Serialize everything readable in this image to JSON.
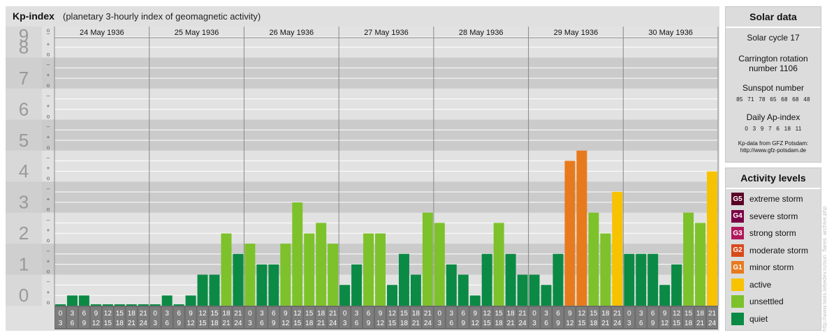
{
  "header": {
    "title": "Kp-index",
    "subtitle": "(planetary 3-hourly index of geomagnetic activity)"
  },
  "chart_data": {
    "type": "bar",
    "title": "Kp-index",
    "subtitle": "(planetary 3-hourly index of geomagnetic activity)",
    "ylim": [
      0,
      9
    ],
    "y_ticks": [
      "0",
      "1",
      "2",
      "3",
      "4",
      "5",
      "6",
      "7",
      "8",
      "9"
    ],
    "minor_tick_labels": [
      "+",
      "o",
      "–"
    ],
    "days": [
      "24 May 1936",
      "25 May 1936",
      "26 May 1936",
      "27 May 1936",
      "28 May 1936",
      "29 May 1936",
      "30 May 1936"
    ],
    "intervals": [
      {
        "from": "0",
        "to": "3"
      },
      {
        "from": "3",
        "to": "6"
      },
      {
        "from": "6",
        "to": "9"
      },
      {
        "from": "9",
        "to": "12"
      },
      {
        "from": "12",
        "to": "15"
      },
      {
        "from": "15",
        "to": "18"
      },
      {
        "from": "18",
        "to": "21"
      },
      {
        "from": "21",
        "to": "24"
      }
    ],
    "values": [
      0.0,
      0.33,
      0.33,
      0.0,
      0.0,
      0.0,
      0.0,
      0.0,
      0.0,
      0.33,
      0.0,
      0.33,
      1.0,
      1.0,
      2.33,
      1.67,
      2.0,
      1.33,
      1.33,
      2.0,
      3.33,
      2.33,
      2.67,
      2.0,
      0.67,
      1.33,
      2.33,
      2.33,
      0.67,
      1.67,
      1.0,
      3.0,
      2.67,
      1.33,
      1.0,
      0.33,
      1.67,
      2.67,
      1.67,
      1.0,
      1.0,
      0.67,
      1.67,
      4.67,
      5.0,
      3.0,
      2.33,
      3.67,
      1.67,
      1.67,
      1.67,
      0.67,
      1.33,
      3.0,
      2.67,
      4.33
    ],
    "grid": true
  },
  "solar": {
    "title": "Solar data",
    "cycle": "Solar cycle 17",
    "carrington_line1": "Carrington rotation",
    "carrington_line2": "number 1106",
    "sunspot_title": "Sunspot number",
    "sunspot_numbers": "85 71 78 65 68 68 48",
    "ap_title": "Daily Ap-index",
    "ap_numbers": "0 3 9 7 6 18 11",
    "source_line1": "Kp-data from GFZ Potsdam:",
    "source_line2": "http://www.gfz-potsdam.de"
  },
  "activity": {
    "title": "Activity levels",
    "levels": [
      {
        "badge": "G5",
        "label": "extreme storm",
        "color": "#5a0026"
      },
      {
        "badge": "G4",
        "label": "severe storm",
        "color": "#7a0044"
      },
      {
        "badge": "G3",
        "label": "strong storm",
        "color": "#b0185a"
      },
      {
        "badge": "G2",
        "label": "moderate storm",
        "color": "#d84a1a"
      },
      {
        "badge": "G1",
        "label": "minor storm",
        "color": "#e87a1e"
      },
      {
        "badge": "",
        "label": "active",
        "color": "#f7c200"
      },
      {
        "badge": "",
        "label": "unsettled",
        "color": "#7dc22a"
      },
      {
        "badge": "",
        "label": "quiet",
        "color": "#0b8a45"
      }
    ]
  },
  "watermark": "http://www.tesis.lebedev.ru/sun_flares_archive.php"
}
